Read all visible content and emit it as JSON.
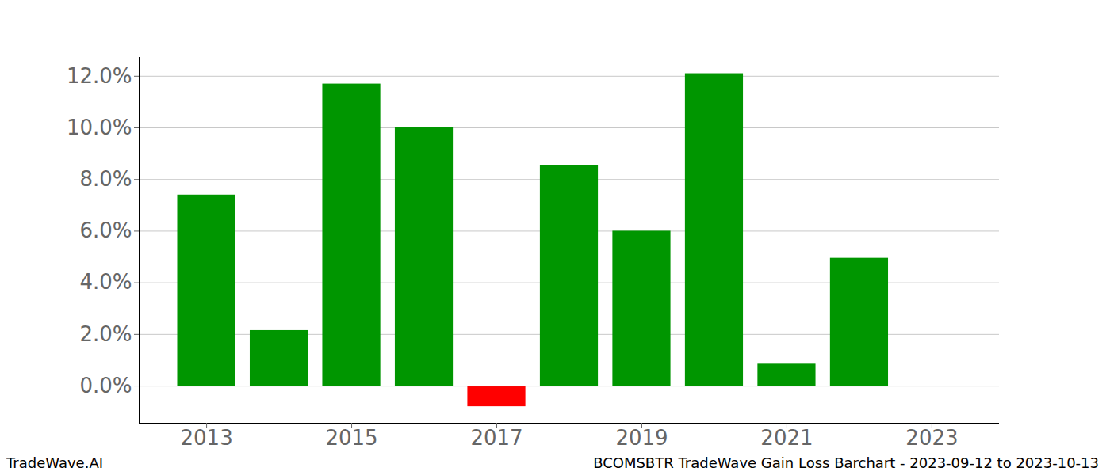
{
  "chart_data": {
    "type": "bar",
    "title": "BCOMSBTR TradeWave Gain Loss Barchart - 2023-09-12 to 2023-10-13",
    "source": "TradeWave.AI",
    "x": [
      2013,
      2014,
      2015,
      2016,
      2017,
      2018,
      2019,
      2020,
      2021,
      2022
    ],
    "values": [
      7.4,
      2.15,
      11.7,
      10.0,
      -0.8,
      8.55,
      6.0,
      12.1,
      0.85,
      4.95
    ],
    "colors": [
      "#009600",
      "#009600",
      "#009600",
      "#009600",
      "#ff0000",
      "#009600",
      "#009600",
      "#009600",
      "#009600",
      "#009600"
    ],
    "xlim": [
      2012.07,
      2023.93
    ],
    "xticks": [
      2013,
      2015,
      2017,
      2019,
      2021,
      2023
    ],
    "ylim": [
      -1.44,
      12.73
    ],
    "yticks": [
      {
        "value": 0,
        "label": "0.0%"
      },
      {
        "value": 2,
        "label": "2.0%"
      },
      {
        "value": 4,
        "label": "4.0%"
      },
      {
        "value": 6,
        "label": "6.0%"
      },
      {
        "value": 8,
        "label": "8.0%"
      },
      {
        "value": 10,
        "label": "10.0%"
      },
      {
        "value": 12,
        "label": "12.0%"
      }
    ],
    "grid": true
  }
}
